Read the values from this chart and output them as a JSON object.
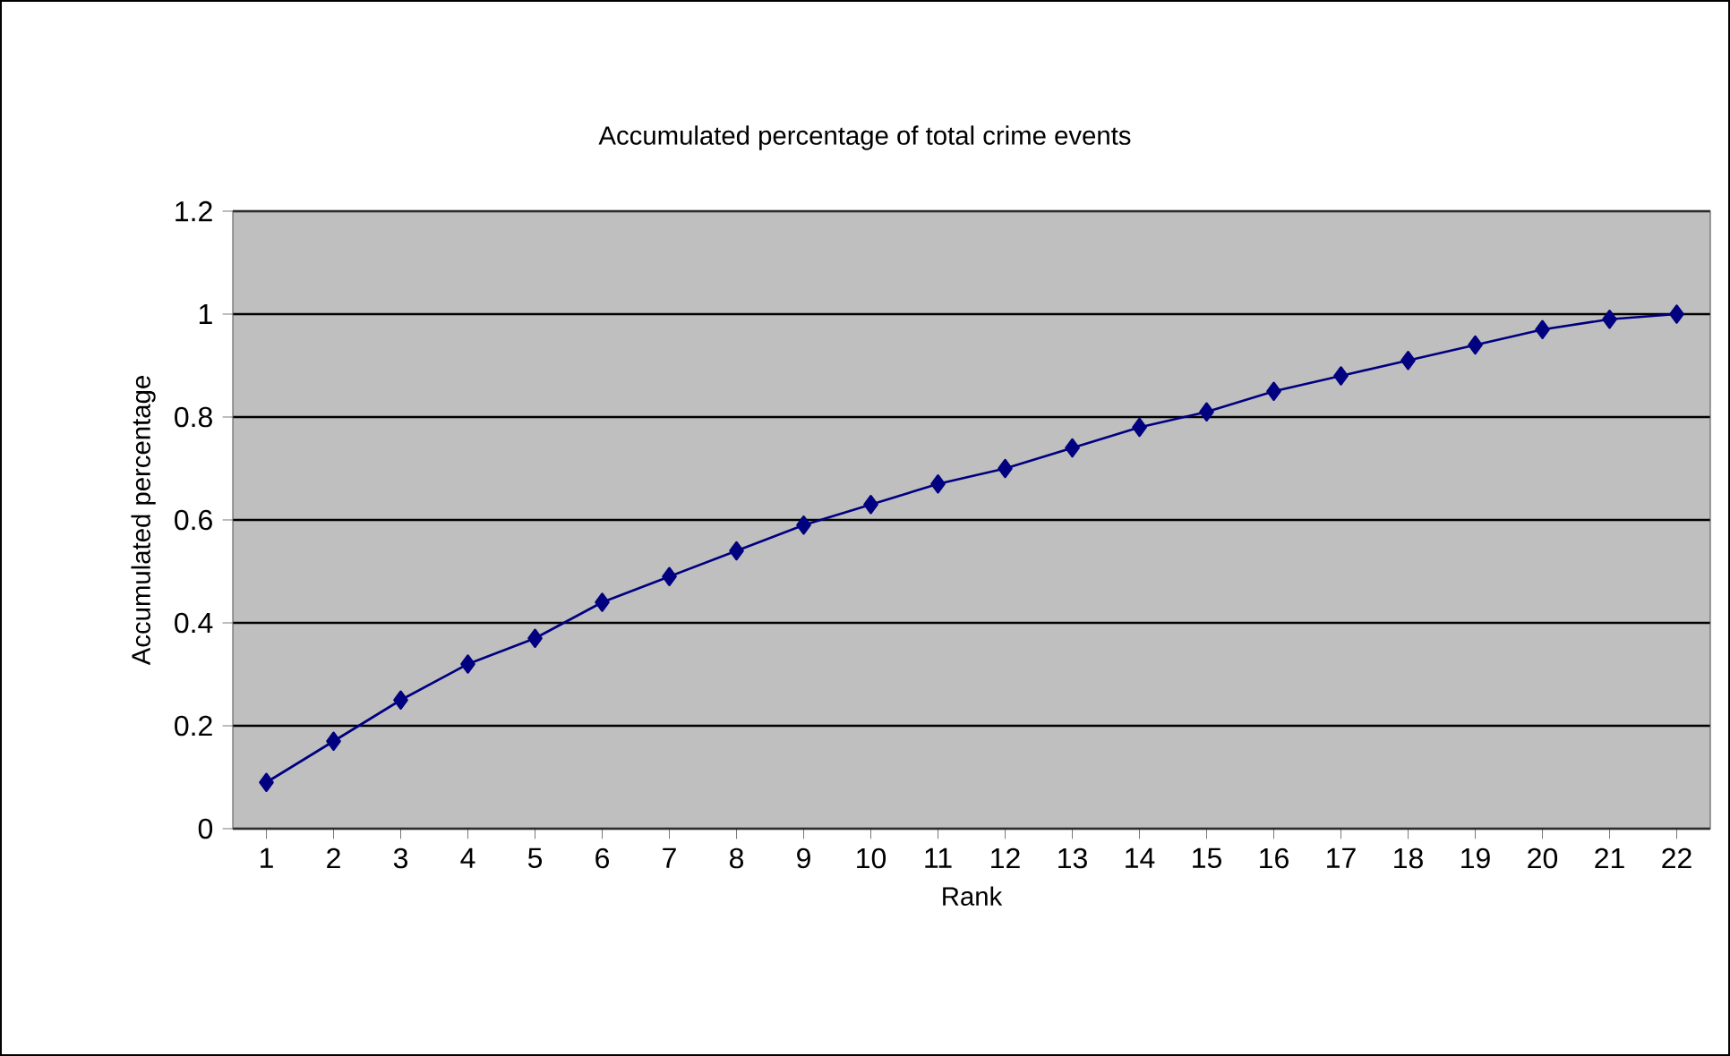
{
  "chart_data": {
    "type": "line",
    "title": "Accumulated percentage of total crime events",
    "xlabel": "Rank",
    "ylabel": "Accumulated percentage",
    "categories": [
      "1",
      "2",
      "3",
      "4",
      "5",
      "6",
      "7",
      "8",
      "9",
      "10",
      "11",
      "12",
      "13",
      "14",
      "15",
      "16",
      "17",
      "18",
      "19",
      "20",
      "21",
      "22"
    ],
    "series": [
      {
        "color": "#000080",
        "values": [
          0.09,
          0.17,
          0.25,
          0.32,
          0.37,
          0.44,
          0.49,
          0.54,
          0.59,
          0.63,
          0.67,
          0.7,
          0.74,
          0.78,
          0.81,
          0.85,
          0.88,
          0.91,
          0.94,
          0.97,
          0.99,
          1.0
        ]
      }
    ],
    "ylim": [
      0,
      1.2
    ],
    "yticks": [
      0,
      0.2,
      0.4,
      0.6,
      0.8,
      1,
      1.2
    ],
    "grid": "y",
    "marker": "diamond"
  }
}
